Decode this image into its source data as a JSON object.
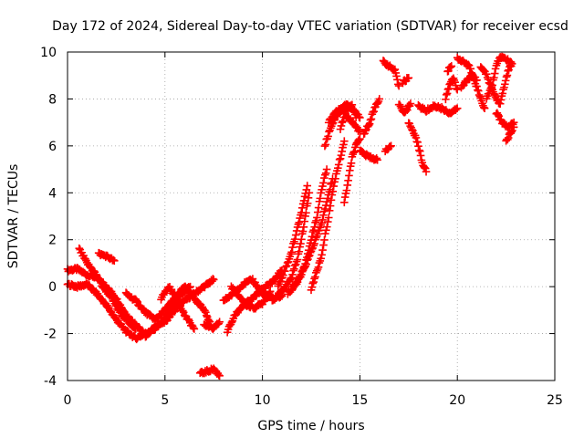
{
  "chart_data": {
    "type": "scatter",
    "title": "Day 172 of 2024, Sidereal Day-to-day VTEC variation (SDTVAR) for receiver ecsd",
    "xlabel": "GPS time / hours",
    "ylabel": "SDTVAR / TECUs",
    "xlim": [
      0,
      25
    ],
    "ylim": [
      -4,
      10
    ],
    "xticks": [
      0,
      5,
      10,
      15,
      20,
      25
    ],
    "yticks": [
      -4,
      -2,
      0,
      2,
      4,
      6,
      8,
      10
    ],
    "grid": true,
    "marker": "+",
    "series_color": "#ff0000",
    "series": [
      {
        "name": "SDTVAR",
        "tracks": [
          [
            [
              0.0,
              0.7
            ],
            [
              0.5,
              0.75
            ],
            [
              1.0,
              0.5
            ],
            [
              1.5,
              0.4
            ],
            [
              2.0,
              0.0
            ],
            [
              2.5,
              -0.5
            ],
            [
              3.0,
              -1.2
            ],
            [
              3.5,
              -1.6
            ],
            [
              4.0,
              -2.1
            ],
            [
              4.5,
              -1.7
            ],
            [
              5.0,
              -1.5
            ],
            [
              5.5,
              -1.0
            ],
            [
              6.0,
              -0.6
            ],
            [
              6.5,
              -0.3
            ],
            [
              7.0,
              0.0
            ],
            [
              7.5,
              0.3
            ]
          ],
          [
            [
              0.0,
              0.1
            ],
            [
              0.5,
              0.0
            ],
            [
              1.0,
              0.1
            ],
            [
              1.5,
              -0.3
            ],
            [
              2.0,
              -0.8
            ],
            [
              2.5,
              -1.4
            ],
            [
              3.0,
              -1.9
            ],
            [
              3.5,
              -2.2
            ],
            [
              4.0,
              -2.0
            ],
            [
              4.5,
              -1.8
            ],
            [
              5.0,
              -1.3
            ],
            [
              5.5,
              -0.7
            ],
            [
              6.0,
              -0.2
            ],
            [
              6.3,
              0.0
            ]
          ],
          [
            [
              0.6,
              1.6
            ],
            [
              1.0,
              1.0
            ],
            [
              1.4,
              0.6
            ],
            [
              1.8,
              0.0
            ],
            [
              2.2,
              -0.4
            ],
            [
              2.6,
              -1.0
            ],
            [
              3.0,
              -1.4
            ],
            [
              3.5,
              -1.8
            ]
          ],
          [
            [
              1.6,
              1.4
            ],
            [
              2.0,
              1.3
            ],
            [
              2.4,
              1.1
            ]
          ],
          [
            [
              3.0,
              -0.3
            ],
            [
              3.5,
              -0.6
            ],
            [
              4.0,
              -1.1
            ],
            [
              4.5,
              -1.4
            ],
            [
              5.0,
              -1.0
            ],
            [
              5.5,
              -0.5
            ],
            [
              6.0,
              0.0
            ],
            [
              6.5,
              -0.5
            ],
            [
              7.0,
              -1.0
            ],
            [
              7.3,
              -1.5
            ]
          ],
          [
            [
              4.8,
              -0.5
            ],
            [
              5.2,
              0.0
            ],
            [
              5.6,
              -0.5
            ],
            [
              6.0,
              -1.2
            ],
            [
              6.5,
              -1.8
            ]
          ],
          [
            [
              6.8,
              -3.7
            ],
            [
              7.2,
              -3.6
            ],
            [
              7.5,
              -3.5
            ],
            [
              7.8,
              -3.8
            ]
          ],
          [
            [
              7.0,
              -1.6
            ],
            [
              7.5,
              -1.8
            ],
            [
              7.8,
              -1.5
            ]
          ],
          [
            [
              8.0,
              -0.6
            ],
            [
              8.5,
              -0.3
            ],
            [
              9.0,
              0.1
            ],
            [
              9.5,
              0.3
            ],
            [
              10.0,
              -0.3
            ],
            [
              10.5,
              -0.5
            ],
            [
              11.0,
              -0.4
            ]
          ],
          [
            [
              8.2,
              -1.9
            ],
            [
              8.6,
              -1.2
            ],
            [
              9.0,
              -0.8
            ],
            [
              9.5,
              -0.5
            ],
            [
              10.0,
              -0.1
            ],
            [
              10.5,
              0.2
            ],
            [
              11.0,
              0.7
            ]
          ],
          [
            [
              8.4,
              0.0
            ],
            [
              8.8,
              -0.4
            ],
            [
              9.2,
              -0.8
            ],
            [
              9.6,
              -0.9
            ],
            [
              10.0,
              -0.7
            ],
            [
              10.4,
              -0.2
            ]
          ],
          [
            [
              10.5,
              -0.6
            ],
            [
              11.0,
              -0.2
            ],
            [
              11.5,
              0.4
            ],
            [
              11.8,
              1.2
            ],
            [
              12.0,
              2.0
            ],
            [
              12.2,
              3.0
            ],
            [
              12.4,
              4.0
            ]
          ],
          [
            [
              10.8,
              0.0
            ],
            [
              11.2,
              0.8
            ],
            [
              11.5,
              1.5
            ],
            [
              11.8,
              2.5
            ],
            [
              12.0,
              3.2
            ],
            [
              12.3,
              4.3
            ]
          ],
          [
            [
              11.3,
              -0.3
            ],
            [
              11.8,
              0.2
            ],
            [
              12.2,
              1.0
            ],
            [
              12.5,
              2.0
            ],
            [
              12.8,
              3.0
            ],
            [
              13.0,
              4.0
            ],
            [
              13.3,
              5.0
            ]
          ],
          [
            [
              11.6,
              0.0
            ],
            [
              12.0,
              0.5
            ],
            [
              12.5,
              1.5
            ],
            [
              13.0,
              2.6
            ],
            [
              13.3,
              3.6
            ],
            [
              13.6,
              4.6
            ]
          ],
          [
            [
              12.5,
              -0.1
            ],
            [
              13.0,
              1.2
            ],
            [
              13.4,
              3.0
            ],
            [
              13.7,
              4.5
            ],
            [
              14.0,
              5.5
            ],
            [
              14.2,
              6.2
            ]
          ],
          [
            [
              13.2,
              6.0
            ],
            [
              13.5,
              6.8
            ],
            [
              13.8,
              7.3
            ],
            [
              14.0,
              7.5
            ],
            [
              14.3,
              7.8
            ],
            [
              14.6,
              7.6
            ],
            [
              15.0,
              7.2
            ]
          ],
          [
            [
              13.4,
              7.0
            ],
            [
              13.7,
              7.4
            ],
            [
              14.0,
              7.6
            ],
            [
              14.3,
              7.3
            ],
            [
              14.6,
              7.0
            ],
            [
              15.0,
              6.6
            ]
          ],
          [
            [
              14.0,
              6.7
            ],
            [
              14.3,
              7.6
            ],
            [
              14.6,
              7.7
            ],
            [
              14.8,
              7.2
            ]
          ],
          [
            [
              14.2,
              3.6
            ],
            [
              14.4,
              4.5
            ],
            [
              14.6,
              5.5
            ],
            [
              14.8,
              6.0
            ],
            [
              15.0,
              6.3
            ]
          ],
          [
            [
              15.2,
              6.5
            ],
            [
              15.5,
              7.0
            ],
            [
              15.8,
              7.7
            ],
            [
              16.0,
              8.0
            ]
          ],
          [
            [
              15.0,
              5.8
            ],
            [
              15.3,
              5.6
            ],
            [
              15.6,
              5.5
            ],
            [
              15.9,
              5.4
            ]
          ],
          [
            [
              16.2,
              9.6
            ],
            [
              16.5,
              9.4
            ],
            [
              16.8,
              9.2
            ],
            [
              17.0,
              8.5
            ],
            [
              17.0,
              7.8
            ],
            [
              17.3,
              7.4
            ],
            [
              17.6,
              7.8
            ]
          ],
          [
            [
              16.3,
              5.8
            ],
            [
              16.6,
              6.0
            ]
          ],
          [
            [
              17.2,
              8.7
            ],
            [
              17.5,
              8.9
            ]
          ],
          [
            [
              17.5,
              7.0
            ],
            [
              17.8,
              6.5
            ],
            [
              18.0,
              6.0
            ],
            [
              18.2,
              5.3
            ],
            [
              18.4,
              4.9
            ]
          ],
          [
            [
              18.0,
              7.7
            ],
            [
              18.4,
              7.5
            ],
            [
              18.8,
              7.7
            ],
            [
              19.2,
              7.6
            ],
            [
              19.6,
              7.4
            ],
            [
              20.0,
              7.6
            ]
          ],
          [
            [
              19.4,
              8.0
            ],
            [
              19.6,
              8.6
            ],
            [
              19.8,
              8.9
            ],
            [
              20.0,
              8.4
            ]
          ],
          [
            [
              19.5,
              9.2
            ],
            [
              19.7,
              9.4
            ]
          ],
          [
            [
              20.0,
              9.7
            ],
            [
              20.3,
              9.6
            ],
            [
              20.6,
              9.4
            ],
            [
              20.8,
              9.0
            ],
            [
              21.0,
              8.5
            ],
            [
              21.2,
              8.0
            ],
            [
              21.4,
              7.6
            ]
          ],
          [
            [
              20.2,
              8.5
            ],
            [
              20.5,
              8.8
            ],
            [
              20.8,
              9.0
            ],
            [
              21.0,
              8.8
            ]
          ],
          [
            [
              21.2,
              9.4
            ],
            [
              21.5,
              9.0
            ],
            [
              21.8,
              8.4
            ],
            [
              22.0,
              8.0
            ],
            [
              22.2,
              7.8
            ],
            [
              22.4,
              8.5
            ],
            [
              22.6,
              9.2
            ],
            [
              22.8,
              9.5
            ]
          ],
          [
            [
              21.5,
              8.0
            ],
            [
              21.8,
              8.6
            ],
            [
              22.0,
              9.4
            ],
            [
              22.2,
              9.8
            ],
            [
              22.5,
              9.7
            ],
            [
              22.8,
              9.5
            ]
          ],
          [
            [
              22.0,
              7.4
            ],
            [
              22.3,
              7.0
            ],
            [
              22.6,
              6.8
            ],
            [
              22.9,
              7.0
            ]
          ],
          [
            [
              22.5,
              6.2
            ],
            [
              22.7,
              6.5
            ],
            [
              22.9,
              6.8
            ]
          ]
        ]
      }
    ]
  }
}
